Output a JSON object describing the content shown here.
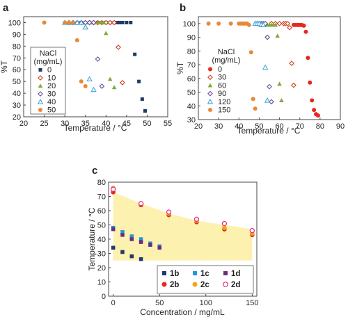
{
  "colors": {
    "m0": "#1f3a68",
    "m10": "#d0401e",
    "m20": "#7ea93a",
    "m30": "#6a4a9c",
    "m40": "#40a7d8",
    "m50": "#e58a3a",
    "b0": "#e8281c",
    "b30": "#d0401e",
    "b60": "#7ea93a",
    "b90": "#6a4a9c",
    "b120": "#40a7d8",
    "b150": "#e58a3a",
    "s1b": "#1f3a68",
    "s1c": "#1e9ad6",
    "s1d": "#6a2c7e",
    "s2b": "#e8281c",
    "s2c": "#f2a516",
    "s2d": "#e8287a",
    "band": "#fdf1b0"
  },
  "chart_data": [
    {
      "id": "a",
      "panel_label": "a",
      "type": "scatter",
      "xlabel": "Temperature / °C",
      "ylabel": "%T",
      "xlim": [
        20,
        55
      ],
      "ylim": [
        20,
        105
      ],
      "xticks": [
        "20",
        "25",
        "30",
        "35",
        "40",
        "45",
        "50",
        "55"
      ],
      "yticks": [
        "20",
        "30",
        "40",
        "50",
        "60",
        "70",
        "80",
        "90",
        "100"
      ],
      "legend_title": "NaCl\n(mg/mL)",
      "legend_position": "left",
      "series": [
        {
          "name": "0",
          "marker": "square-filled",
          "color_key": "m0",
          "points": [
            [
              34,
              100
            ],
            [
              36,
              100
            ],
            [
              38,
              100
            ],
            [
              40,
              100
            ],
            [
              41,
              100
            ],
            [
              42,
              100
            ],
            [
              42.5,
              100
            ],
            [
              43,
              100
            ],
            [
              43.5,
              100
            ],
            [
              44,
              100
            ],
            [
              45,
              100
            ],
            [
              46,
              100
            ],
            [
              47,
              73
            ],
            [
              48,
              50
            ],
            [
              48.8,
              35
            ],
            [
              49.5,
              25
            ]
          ]
        },
        {
          "name": "10",
          "marker": "diamond-open",
          "color_key": "m10",
          "points": [
            [
              31,
              100
            ],
            [
              32,
              100
            ],
            [
              33,
              100
            ],
            [
              34,
              100
            ],
            [
              35,
              100
            ],
            [
              36,
              100
            ],
            [
              37,
              100
            ],
            [
              38,
              100
            ],
            [
              39,
              100
            ],
            [
              40,
              100
            ],
            [
              41,
              100
            ],
            [
              42,
              100
            ],
            [
              43,
              79
            ],
            [
              44,
              49
            ]
          ]
        },
        {
          "name": "20",
          "marker": "triangle-filled",
          "color_key": "m20",
          "points": [
            [
              32,
              100
            ],
            [
              33,
              100
            ],
            [
              34,
              100
            ],
            [
              35,
              100
            ],
            [
              36,
              100
            ],
            [
              37,
              100
            ],
            [
              38,
              100
            ],
            [
              39,
              100
            ],
            [
              39.5,
              100
            ],
            [
              40,
              91
            ],
            [
              41,
              52
            ],
            [
              42,
              45
            ]
          ]
        },
        {
          "name": "30",
          "marker": "diamond-open",
          "color_key": "m30",
          "points": [
            [
              31,
              100
            ],
            [
              32,
              100
            ],
            [
              33,
              100
            ],
            [
              34,
              100
            ],
            [
              35,
              100
            ],
            [
              36,
              100
            ],
            [
              37,
              100
            ],
            [
              38,
              69
            ],
            [
              39,
              46
            ]
          ]
        },
        {
          "name": "40",
          "marker": "triangle-open",
          "color_key": "m40",
          "points": [
            [
              30,
              100
            ],
            [
              31,
              100
            ],
            [
              32,
              100
            ],
            [
              33,
              100
            ],
            [
              34,
              100
            ],
            [
              35,
              96
            ],
            [
              36,
              52
            ],
            [
              37,
              43
            ]
          ]
        },
        {
          "name": "50",
          "marker": "circle-filled",
          "color_key": "m50",
          "points": [
            [
              25,
              100
            ],
            [
              30,
              100
            ],
            [
              31,
              100
            ],
            [
              32,
              100
            ],
            [
              33,
              85
            ],
            [
              34,
              50
            ],
            [
              35,
              46
            ]
          ]
        }
      ]
    },
    {
      "id": "b",
      "panel_label": "b",
      "type": "scatter",
      "xlabel": "Temperature / °C",
      "ylabel": "%T",
      "xlim": [
        20,
        90
      ],
      "ylim": [
        30,
        105
      ],
      "xticks": [
        "20",
        "30",
        "40",
        "50",
        "60",
        "70",
        "80",
        "90"
      ],
      "yticks": [
        "30",
        "40",
        "50",
        "60",
        "70",
        "80",
        "90",
        "100"
      ],
      "legend_title": "NaCl\n(mg/mL)",
      "legend_position": "center",
      "series": [
        {
          "name": "0",
          "marker": "circle-filled",
          "color_key": "b0",
          "points": [
            [
              67,
              99
            ],
            [
              68,
              99
            ],
            [
              69,
              99
            ],
            [
              70,
              99
            ],
            [
              71,
              99
            ],
            [
              72,
              98.5
            ],
            [
              73,
              94
            ],
            [
              74,
              75
            ],
            [
              75,
              57
            ],
            [
              76,
              44
            ],
            [
              77,
              37
            ],
            [
              78,
              34
            ],
            [
              79,
              33
            ]
          ]
        },
        {
          "name": "30",
          "marker": "diamond-open",
          "color_key": "b30",
          "points": [
            [
              56,
              100
            ],
            [
              58,
              100
            ],
            [
              60,
              100
            ],
            [
              62,
              100
            ],
            [
              63,
              100
            ],
            [
              64,
              100
            ],
            [
              65,
              97
            ],
            [
              66,
              71
            ],
            [
              67,
              55
            ]
          ]
        },
        {
          "name": "60",
          "marker": "triangle-filled",
          "color_key": "b60",
          "points": [
            [
              52,
              100
            ],
            [
              53,
              100
            ],
            [
              54,
              99
            ],
            [
              55,
              99
            ],
            [
              56,
              99
            ],
            [
              57,
              99
            ],
            [
              58,
              99
            ],
            [
              59,
              91
            ],
            [
              60,
              56
            ],
            [
              61,
              44
            ]
          ]
        },
        {
          "name": "90",
          "marker": "diamond-open",
          "color_key": "b90",
          "points": [
            [
              49,
              100
            ],
            [
              50,
              100
            ],
            [
              51,
              100
            ],
            [
              52,
              100
            ],
            [
              53,
              100
            ],
            [
              54,
              90
            ],
            [
              55,
              54
            ],
            [
              56,
              43
            ]
          ]
        },
        {
          "name": "120",
          "marker": "triangle-open",
          "color_key": "b120",
          "points": [
            [
              48,
              100
            ],
            [
              49,
              100
            ],
            [
              50,
              100
            ],
            [
              51,
              99
            ],
            [
              52,
              99
            ],
            [
              53,
              68
            ],
            [
              54,
              44
            ]
          ]
        },
        {
          "name": "150",
          "marker": "circle-filled",
          "color_key": "b150",
          "points": [
            [
              25,
              100
            ],
            [
              30,
              100
            ],
            [
              36,
              100
            ],
            [
              40,
              100
            ],
            [
              41,
              100
            ],
            [
              42,
              100
            ],
            [
              43,
              100
            ],
            [
              44,
              100
            ],
            [
              45,
              99
            ],
            [
              46,
              79
            ],
            [
              47,
              45
            ],
            [
              48,
              38
            ]
          ]
        }
      ]
    },
    {
      "id": "c",
      "panel_label": "c",
      "type": "scatter",
      "xlabel": "Concentration / mg/mL",
      "ylabel": "Temperature / °C",
      "xlim": [
        -5,
        155
      ],
      "ylim": [
        0,
        80
      ],
      "xticks": [
        "0",
        "50",
        "100",
        "150"
      ],
      "xtick_values": [
        0,
        50,
        100,
        150
      ],
      "yticks": [
        "0",
        "10",
        "20",
        "30",
        "40",
        "50",
        "60",
        "70",
        "80"
      ],
      "legend_position": "bottom-right",
      "band": {
        "color_key": "band",
        "upper": [
          [
            0,
            73
          ],
          [
            30,
            65
          ],
          [
            60,
            58
          ],
          [
            90,
            53
          ],
          [
            120,
            50
          ],
          [
            150,
            47
          ]
        ],
        "lower": [
          [
            0,
            25
          ],
          [
            150,
            25
          ]
        ]
      },
      "series": [
        {
          "name": "1b",
          "marker": "square-filled",
          "color_key": "s1b",
          "points": [
            [
              0,
              34
            ],
            [
              10,
              31
            ],
            [
              20,
              28
            ],
            [
              30,
              26
            ]
          ]
        },
        {
          "name": "1c",
          "marker": "square-filled",
          "color_key": "s1c",
          "points": [
            [
              0,
              48
            ],
            [
              10,
              45
            ],
            [
              20,
              42
            ],
            [
              30,
              40
            ],
            [
              40,
              37
            ],
            [
              50,
              35
            ]
          ]
        },
        {
          "name": "1d",
          "marker": "square-filled",
          "color_key": "s1d",
          "points": [
            [
              0,
              47
            ],
            [
              10,
              43
            ],
            [
              20,
              40
            ],
            [
              30,
              38
            ],
            [
              40,
              36
            ],
            [
              50,
              34
            ]
          ]
        },
        {
          "name": "2b",
          "marker": "circle-filled",
          "color_key": "s2b",
          "points": [
            [
              0,
              73
            ],
            [
              30,
              64
            ],
            [
              60,
              57
            ],
            [
              90,
              52
            ],
            [
              120,
              47
            ],
            [
              150,
              43
            ]
          ]
        },
        {
          "name": "2c",
          "marker": "circle-filled",
          "color_key": "s2c",
          "points": [
            [
              0,
              76
            ],
            [
              30,
              65
            ],
            [
              60,
              58
            ],
            [
              90,
              53
            ],
            [
              120,
              48
            ],
            [
              150,
              44
            ]
          ]
        },
        {
          "name": "2d",
          "marker": "circle-open",
          "color_key": "s2d",
          "points": [
            [
              0,
              75
            ],
            [
              30,
              65
            ],
            [
              60,
              59
            ],
            [
              90,
              54
            ],
            [
              120,
              51
            ],
            [
              150,
              46
            ]
          ]
        }
      ]
    }
  ]
}
